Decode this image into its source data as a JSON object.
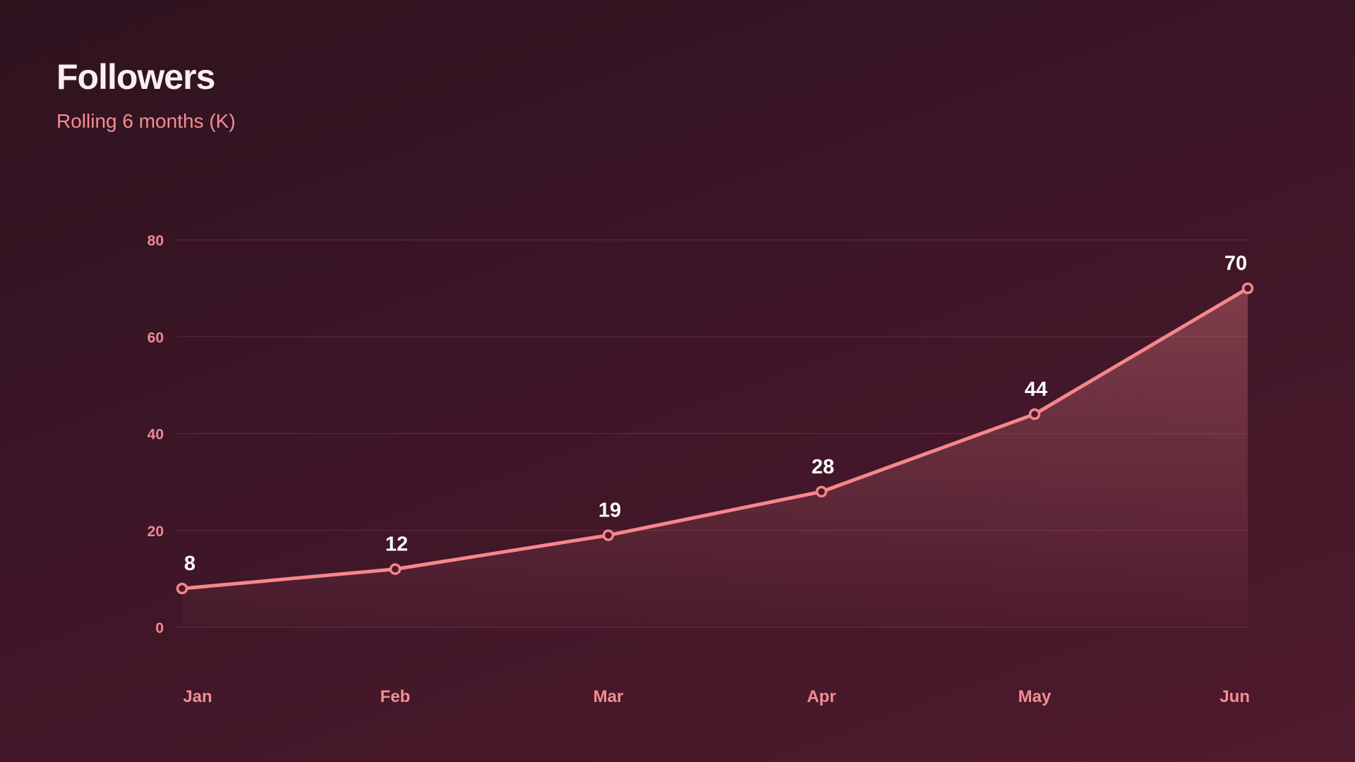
{
  "header": {
    "title": "Followers",
    "subtitle": "Rolling 6 months (K)"
  },
  "colors": {
    "line": "#f7868c",
    "accent_text": "#f58d92",
    "background": "#3d1627"
  },
  "chart_data": {
    "type": "line",
    "title": "Followers",
    "subtitle": "Rolling 6 months (K)",
    "categories": [
      "Jan",
      "Feb",
      "Mar",
      "Apr",
      "May",
      "Jun"
    ],
    "series": [
      {
        "values": [
          8,
          12,
          19,
          28,
          44,
          70
        ]
      }
    ],
    "data_labels": [
      "8",
      "12",
      "19",
      "28",
      "44",
      "70"
    ],
    "y_ticks": [
      0,
      20,
      40,
      60,
      80
    ],
    "y_tick_labels": [
      "0",
      "20",
      "40",
      "60",
      "80"
    ],
    "ylim": [
      0,
      80
    ],
    "grid": true,
    "area_fill": true
  }
}
